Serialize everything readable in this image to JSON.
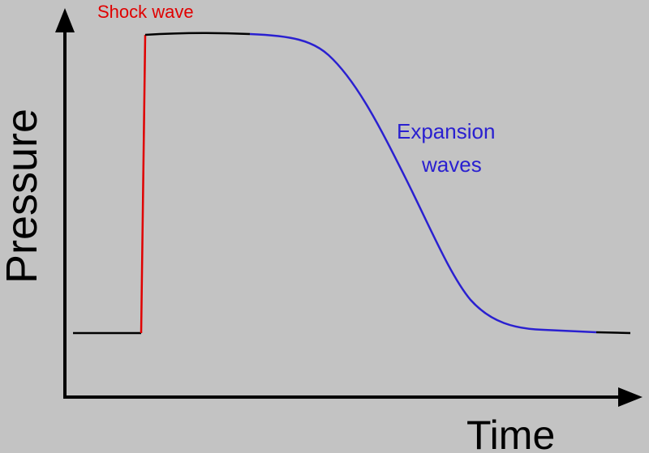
{
  "axes": {
    "x_label": "Time",
    "y_label": "Pressure"
  },
  "annotations": {
    "shock": "Shock wave",
    "expansion": [
      "Expansion",
      "waves"
    ]
  }
}
